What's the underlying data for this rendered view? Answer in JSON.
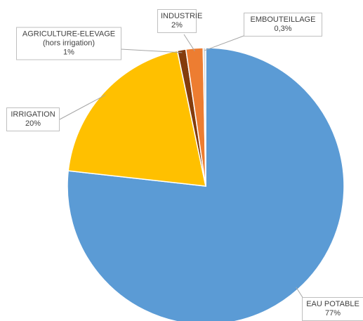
{
  "chart_data": {
    "type": "pie",
    "categories": [
      "EAU POTABLE",
      "IRRIGATION",
      "AGRICULTURE-ELEVAGE (hors irrigation)",
      "INDUSTRIE",
      "EMBOUTEILLAGE"
    ],
    "values": [
      77,
      20,
      1,
      2,
      0.3
    ],
    "value_labels": [
      "77%",
      "20%",
      "1%",
      "2%",
      "0,3%"
    ],
    "colors": [
      "#5b9bd5",
      "#ffc000",
      "#843c0c",
      "#ed7d31",
      "#d9d9d9"
    ]
  }
}
